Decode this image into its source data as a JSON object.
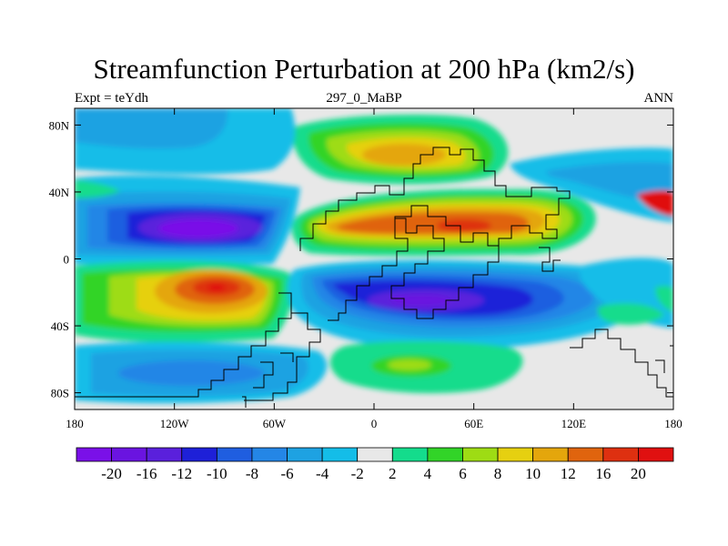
{
  "chart_data": {
    "type": "heatmap",
    "title": "Streamfunction Perturbation at 200 hPa (km2/s)",
    "subtitle_left": "Expt = teYdh",
    "subtitle_center": "297_0_MaBP",
    "subtitle_right": "ANN",
    "xlabel": "",
    "ylabel": "",
    "xlim": [
      -180,
      180
    ],
    "ylim": [
      -90,
      90
    ],
    "x_ticks": [
      {
        "value": -180,
        "label": "180"
      },
      {
        "value": -120,
        "label": "120W"
      },
      {
        "value": -60,
        "label": "60W"
      },
      {
        "value": 0,
        "label": "0"
      },
      {
        "value": 60,
        "label": "60E"
      },
      {
        "value": 120,
        "label": "120E"
      },
      {
        "value": 180,
        "label": "180"
      }
    ],
    "y_ticks": [
      {
        "value": 80,
        "label": "80N"
      },
      {
        "value": 40,
        "label": "40N"
      },
      {
        "value": 0,
        "label": "0"
      },
      {
        "value": -40,
        "label": "40S"
      },
      {
        "value": -80,
        "label": "80S"
      }
    ],
    "colorbar": {
      "colors": [
        "#7a10e8",
        "#6a14e0",
        "#5a20dc",
        "#1e20d8",
        "#1f5ee0",
        "#2486e6",
        "#1ea2e2",
        "#14bde8",
        "#e8e8e8",
        "#14dc8c",
        "#32d428",
        "#9edc14",
        "#e6d010",
        "#e4a60c",
        "#e0640e",
        "#de3010",
        "#e01010"
      ],
      "labels": [
        "-20",
        "-16",
        "-12",
        "-10",
        "-8",
        "-6",
        "-4",
        "-2",
        "2",
        "4",
        "6",
        "8",
        "10",
        "12",
        "16",
        "20"
      ]
    },
    "features": [
      {
        "name": "low-north-pacific-central",
        "lon": -95,
        "lat": 17,
        "peak": -21
      },
      {
        "name": "high-south-pacific",
        "lon": -90,
        "lat": -17,
        "peak": 20
      },
      {
        "name": "high-north-tropics-asia",
        "lon": 55,
        "lat": 18,
        "peak": 16
      },
      {
        "name": "low-south-atlantic-africa",
        "lon": 35,
        "lat": -28,
        "peak": -14
      },
      {
        "name": "high-north-polar",
        "lon": 40,
        "lat": 62,
        "peak": 11
      },
      {
        "name": "high-southern-ocean",
        "lon": 20,
        "lat": -62,
        "peak": 8
      }
    ]
  }
}
